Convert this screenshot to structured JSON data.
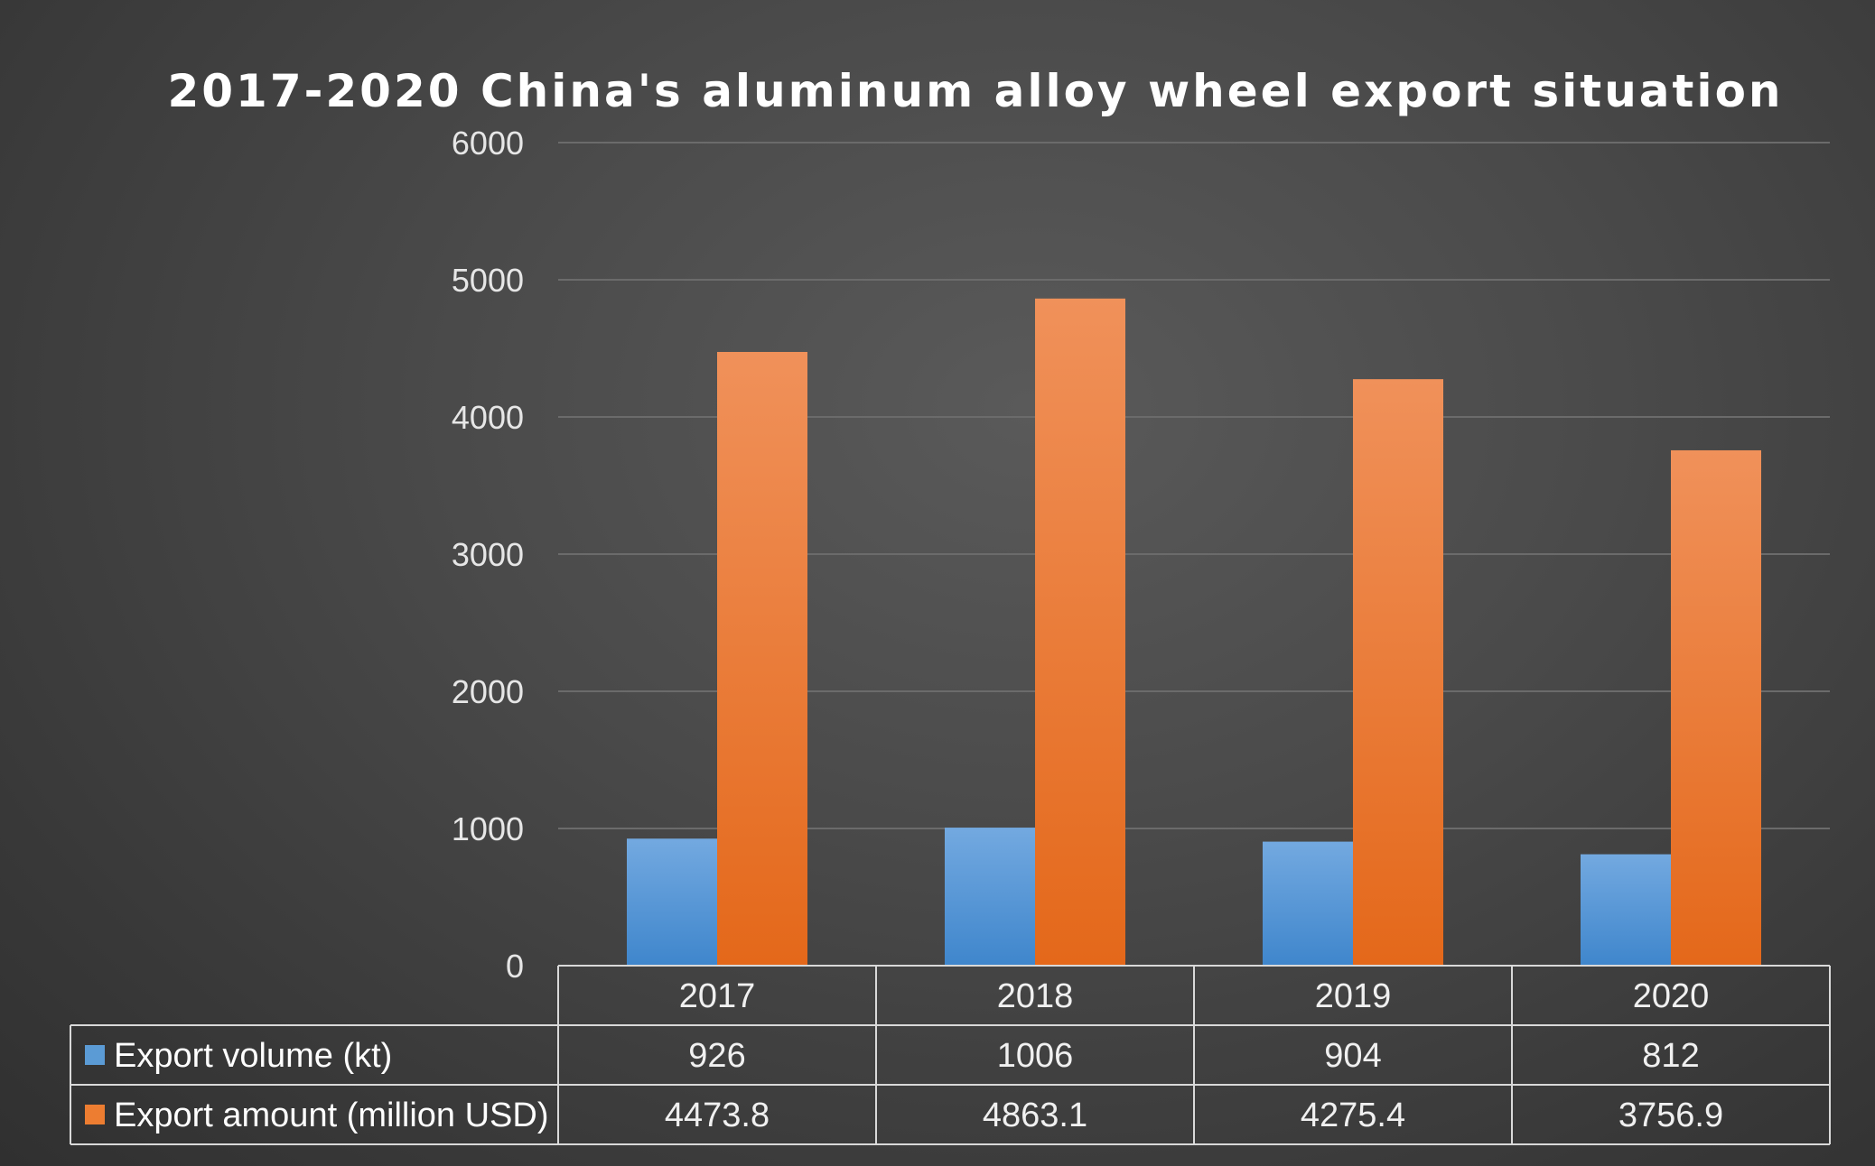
{
  "chart_data": {
    "type": "bar",
    "title": "2017-2020 China's aluminum alloy wheel export situation",
    "categories": [
      "2017",
      "2018",
      "2019",
      "2020"
    ],
    "series": [
      {
        "name": "Export volume (kt)",
        "values": [
          926,
          1006,
          904,
          812
        ],
        "labels": [
          "926",
          "1006",
          "904",
          "812"
        ],
        "color": "#5b9bd5"
      },
      {
        "name": "Export amount (million USD)",
        "values": [
          4473.8,
          4863.1,
          4275.4,
          3756.9
        ],
        "labels": [
          "4473.8",
          "4863.1",
          "4275.4",
          "3756.9"
        ],
        "color": "#ed7d31"
      }
    ],
    "ylim": [
      0,
      6000
    ],
    "yticks": [
      "0",
      "1000",
      "2000",
      "3000",
      "4000",
      "5000",
      "6000"
    ],
    "ytick_values": [
      0,
      1000,
      2000,
      3000,
      4000,
      5000,
      6000
    ],
    "grid": true,
    "legend": "data-table",
    "background": "#444444"
  }
}
